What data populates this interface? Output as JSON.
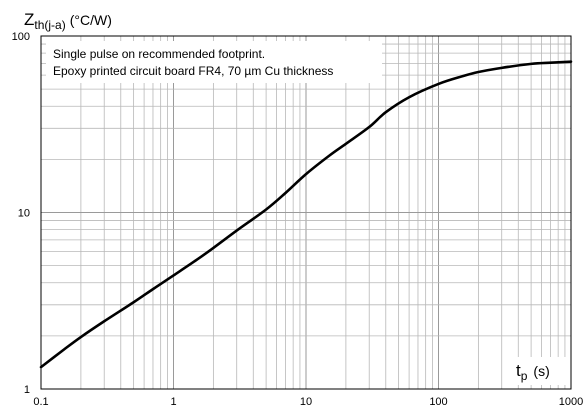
{
  "chart_data": {
    "type": "line",
    "ylabel": {
      "main": "Z",
      "subscript": "th(j-a)",
      "unit": "(°C/W)"
    },
    "xlabel": {
      "main": "t",
      "subscript": "p",
      "unit": "(s)"
    },
    "xscale": "log",
    "yscale": "log",
    "xlim": [
      0.1,
      1000
    ],
    "ylim": [
      1,
      100
    ],
    "x_tick_labels": [
      "0.1",
      "1",
      "10",
      "100",
      "1000"
    ],
    "y_tick_labels": [
      "1",
      "10",
      "100"
    ],
    "grid": true,
    "annotations": [
      "Single pulse on recommended footprint.",
      "Epoxy printed circuit board FR4, 70 µm Cu thickness"
    ],
    "series": [
      {
        "color": "#000000",
        "x": [
          0.1,
          0.15,
          0.2,
          0.3,
          0.5,
          0.7,
          1,
          1.5,
          2,
          3,
          5,
          7,
          10,
          15,
          20,
          30,
          40,
          60,
          100,
          150,
          200,
          300,
          500,
          700,
          1000
        ],
        "y": [
          1.33,
          1.68,
          1.97,
          2.42,
          3.1,
          3.68,
          4.4,
          5.4,
          6.3,
          7.9,
          10.4,
          12.9,
          16.5,
          21.0,
          24.5,
          30.5,
          37.0,
          45.0,
          53.5,
          59.0,
          62.5,
          66.0,
          69.5,
          70.6,
          71.5
        ]
      }
    ]
  }
}
